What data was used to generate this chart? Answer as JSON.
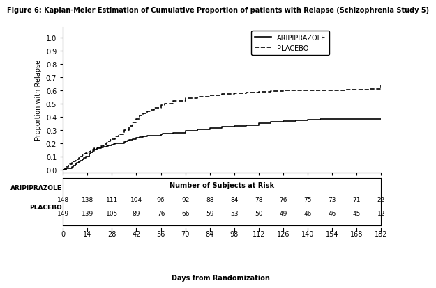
{
  "title": "Figure 6: Kaplan-Meier Estimation of Cumulative Proportion of patients with Relapse (Schizophrenia Study 5)",
  "ylabel": "Proportion with Relapse",
  "xlabel": "Days from Randomization",
  "risk_label": "Number of Subjects at Risk",
  "xlim": [
    0,
    182
  ],
  "ylim": [
    -0.02,
    1.08
  ],
  "xticks": [
    0,
    14,
    28,
    42,
    56,
    70,
    84,
    98,
    112,
    126,
    140,
    154,
    168,
    182
  ],
  "yticks": [
    0.0,
    0.1,
    0.2,
    0.3,
    0.4,
    0.5,
    0.6,
    0.7,
    0.8,
    0.9,
    1.0
  ],
  "aripiprazole_x": [
    0,
    1,
    2,
    4,
    5,
    6,
    7,
    8,
    9,
    10,
    11,
    12,
    13,
    14,
    15,
    16,
    17,
    18,
    19,
    20,
    21,
    22,
    23,
    25,
    26,
    28,
    29,
    30,
    35,
    36,
    37,
    38,
    40,
    42,
    44,
    46,
    48,
    50,
    56,
    57,
    63,
    70,
    77,
    84,
    91,
    98,
    105,
    112,
    119,
    126,
    133,
    140,
    147,
    154,
    161,
    168,
    175,
    182
  ],
  "aripiprazole_y": [
    0.0,
    0.0,
    0.01,
    0.01,
    0.02,
    0.03,
    0.04,
    0.05,
    0.06,
    0.07,
    0.08,
    0.09,
    0.1,
    0.1,
    0.12,
    0.13,
    0.14,
    0.15,
    0.155,
    0.16,
    0.165,
    0.17,
    0.175,
    0.18,
    0.185,
    0.19,
    0.195,
    0.2,
    0.21,
    0.215,
    0.22,
    0.225,
    0.23,
    0.24,
    0.245,
    0.25,
    0.255,
    0.26,
    0.27,
    0.275,
    0.28,
    0.295,
    0.305,
    0.315,
    0.325,
    0.33,
    0.335,
    0.355,
    0.365,
    0.37,
    0.375,
    0.38,
    0.385,
    0.385,
    0.385,
    0.385,
    0.385,
    0.385
  ],
  "placebo_x": [
    0,
    1,
    2,
    3,
    4,
    5,
    6,
    7,
    8,
    9,
    10,
    11,
    12,
    13,
    14,
    15,
    16,
    17,
    18,
    19,
    20,
    21,
    22,
    23,
    24,
    25,
    26,
    27,
    28,
    30,
    32,
    35,
    38,
    40,
    42,
    44,
    46,
    48,
    50,
    52,
    56,
    58,
    63,
    70,
    77,
    84,
    91,
    98,
    105,
    112,
    119,
    126,
    133,
    140,
    147,
    154,
    161,
    168,
    175,
    182
  ],
  "placebo_y": [
    0.0,
    0.01,
    0.02,
    0.03,
    0.04,
    0.05,
    0.06,
    0.07,
    0.08,
    0.09,
    0.1,
    0.11,
    0.12,
    0.125,
    0.13,
    0.135,
    0.14,
    0.15,
    0.16,
    0.165,
    0.17,
    0.175,
    0.18,
    0.185,
    0.195,
    0.205,
    0.215,
    0.225,
    0.23,
    0.25,
    0.27,
    0.3,
    0.33,
    0.36,
    0.385,
    0.41,
    0.425,
    0.44,
    0.455,
    0.47,
    0.49,
    0.5,
    0.52,
    0.545,
    0.555,
    0.565,
    0.575,
    0.58,
    0.585,
    0.59,
    0.595,
    0.598,
    0.6,
    0.601,
    0.602,
    0.603,
    0.604,
    0.605,
    0.61,
    0.64
  ],
  "aripiprazole_risk": [
    148,
    138,
    111,
    104,
    96,
    92,
    88,
    84,
    78,
    76,
    75,
    73,
    71,
    22
  ],
  "placebo_risk": [
    149,
    139,
    105,
    89,
    76,
    66,
    59,
    53,
    50,
    49,
    46,
    46,
    45,
    12
  ],
  "risk_days": [
    0,
    14,
    28,
    42,
    56,
    70,
    84,
    98,
    112,
    126,
    140,
    154,
    168,
    182
  ],
  "legend_labels": [
    "ARIPIPRAZOLE",
    "PLACEBO"
  ],
  "line_color": "#000000",
  "background_color": "#ffffff",
  "label_fontsize": 7,
  "tick_fontsize": 7,
  "title_fontsize": 7,
  "risk_fontsize": 6.5,
  "lw": 1.2
}
